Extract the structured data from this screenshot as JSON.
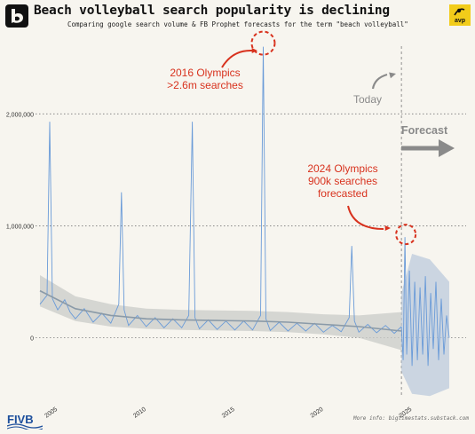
{
  "header": {
    "title": "Beach volleyball search popularity is declining",
    "subtitle": "Comparing google search volume & FB Prophet forecasts for the term \"beach volleyball\"",
    "left_logo": "bts-logo",
    "right_logo_text": "avp"
  },
  "footer": {
    "logo_text": "FIVB",
    "source": "More info: bigtimestats.substack.com"
  },
  "colors": {
    "background": "#f7f5ef",
    "series": "#6a9bd8",
    "trend": "#8a9aa8",
    "band": "#c9cbc8",
    "annotation_red": "#d8321e",
    "annotation_gray": "#8a8a8a",
    "grid": "#7a7a7a"
  },
  "chart_data": {
    "type": "line",
    "title": "",
    "xlabel": "",
    "ylabel": "",
    "xlim": [
      2004,
      2027.3
    ],
    "ylim": [
      -550000,
      2700000
    ],
    "x_ticks": [
      2005,
      2010,
      2015,
      2020,
      2025
    ],
    "x_tick_labels": [
      "2005",
      "2010",
      "2015",
      "2020",
      "2025"
    ],
    "y_ticks": [
      0,
      1000000,
      2000000
    ],
    "y_tick_labels": [
      "0",
      "1,000,000",
      "2,000,000"
    ],
    "grid": "horizontal dotted",
    "today_x": 2024.4,
    "series": [
      {
        "name": "",
        "kind": "observed",
        "points": [
          [
            2004.0,
            300000
          ],
          [
            2004.4,
            380000
          ],
          [
            2004.55,
            1930000
          ],
          [
            2004.7,
            350000
          ],
          [
            2005.0,
            250000
          ],
          [
            2005.4,
            340000
          ],
          [
            2005.7,
            230000
          ],
          [
            2006.0,
            170000
          ],
          [
            2006.5,
            260000
          ],
          [
            2007.0,
            140000
          ],
          [
            2007.5,
            220000
          ],
          [
            2008.0,
            130000
          ],
          [
            2008.45,
            300000
          ],
          [
            2008.6,
            1300000
          ],
          [
            2008.75,
            250000
          ],
          [
            2009.0,
            110000
          ],
          [
            2009.5,
            200000
          ],
          [
            2010.0,
            100000
          ],
          [
            2010.5,
            180000
          ],
          [
            2011.0,
            90000
          ],
          [
            2011.5,
            170000
          ],
          [
            2012.0,
            90000
          ],
          [
            2012.4,
            200000
          ],
          [
            2012.6,
            1930000
          ],
          [
            2012.75,
            180000
          ],
          [
            2013.0,
            80000
          ],
          [
            2013.5,
            160000
          ],
          [
            2014.0,
            75000
          ],
          [
            2014.5,
            150000
          ],
          [
            2015.0,
            70000
          ],
          [
            2015.5,
            150000
          ],
          [
            2016.0,
            70000
          ],
          [
            2016.45,
            200000
          ],
          [
            2016.6,
            2600000
          ],
          [
            2016.75,
            170000
          ],
          [
            2017.0,
            65000
          ],
          [
            2017.5,
            140000
          ],
          [
            2018.0,
            60000
          ],
          [
            2018.5,
            130000
          ],
          [
            2019.0,
            60000
          ],
          [
            2019.5,
            130000
          ],
          [
            2020.0,
            50000
          ],
          [
            2020.5,
            110000
          ],
          [
            2021.0,
            55000
          ],
          [
            2021.45,
            180000
          ],
          [
            2021.6,
            820000
          ],
          [
            2021.75,
            150000
          ],
          [
            2022.0,
            50000
          ],
          [
            2022.5,
            120000
          ],
          [
            2023.0,
            45000
          ],
          [
            2023.5,
            110000
          ],
          [
            2024.0,
            40000
          ],
          [
            2024.4,
            100000
          ]
        ]
      },
      {
        "name": "",
        "kind": "forecast",
        "points": [
          [
            2024.4,
            100000
          ],
          [
            2024.5,
            -200000
          ],
          [
            2024.6,
            900000
          ],
          [
            2024.7,
            -150000
          ],
          [
            2024.85,
            600000
          ],
          [
            2025.0,
            -250000
          ],
          [
            2025.15,
            500000
          ],
          [
            2025.3,
            -200000
          ],
          [
            2025.45,
            450000
          ],
          [
            2025.6,
            -150000
          ],
          [
            2025.75,
            550000
          ],
          [
            2025.9,
            -250000
          ],
          [
            2026.05,
            400000
          ],
          [
            2026.2,
            -100000
          ],
          [
            2026.35,
            500000
          ],
          [
            2026.5,
            -200000
          ],
          [
            2026.65,
            350000
          ],
          [
            2026.8,
            -150000
          ],
          [
            2026.95,
            200000
          ],
          [
            2027.1,
            0
          ]
        ]
      },
      {
        "name": "",
        "kind": "trend",
        "points": [
          [
            2004.0,
            420000
          ],
          [
            2006.0,
            260000
          ],
          [
            2008.0,
            200000
          ],
          [
            2010.0,
            170000
          ],
          [
            2012.0,
            160000
          ],
          [
            2014.0,
            155000
          ],
          [
            2016.0,
            150000
          ],
          [
            2018.0,
            140000
          ],
          [
            2020.0,
            120000
          ],
          [
            2022.0,
            100000
          ],
          [
            2024.4,
            60000
          ]
        ]
      }
    ],
    "uncertainty_band": {
      "x": [
        2004.0,
        2006.0,
        2008.0,
        2010.0,
        2012.0,
        2014.0,
        2016.0,
        2018.0,
        2020.0,
        2022.0,
        2024.4
      ],
      "upper": [
        560000,
        370000,
        300000,
        260000,
        250000,
        245000,
        240000,
        230000,
        210000,
        200000,
        230000
      ],
      "lower": [
        280000,
        150000,
        100000,
        80000,
        70000,
        65000,
        60000,
        50000,
        30000,
        0,
        -110000
      ]
    },
    "forecast_band": {
      "x": [
        2024.4,
        2025.0,
        2026.0,
        2027.1
      ],
      "upper": [
        400000,
        750000,
        700000,
        500000
      ],
      "lower": [
        -300000,
        -500000,
        -520000,
        -450000
      ]
    },
    "annotations": [
      {
        "lines": [
          "2016 Olympics",
          ">2.6m searches"
        ],
        "target": [
          2016.6,
          2600000
        ],
        "color": "red"
      },
      {
        "lines": [
          "2024 Olympics",
          "900k searches",
          "forecasted"
        ],
        "target": [
          2024.6,
          900000
        ],
        "color": "red"
      },
      {
        "lines": [
          "Today"
        ],
        "color": "gray"
      },
      {
        "lines": [
          "Forecast"
        ],
        "color": "gray"
      }
    ]
  }
}
